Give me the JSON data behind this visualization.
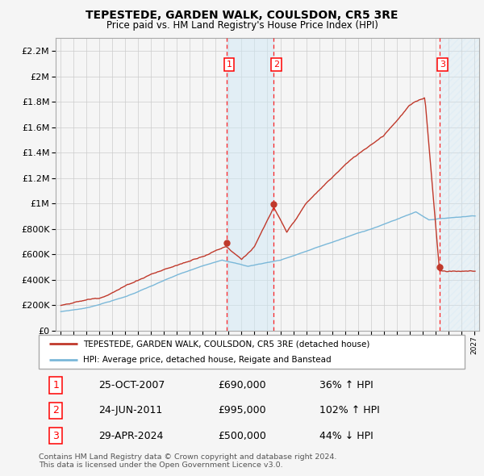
{
  "title": "TEPESTEDE, GARDEN WALK, COULSDON, CR5 3RE",
  "subtitle": "Price paid vs. HM Land Registry's House Price Index (HPI)",
  "legend_line1": "TEPESTEDE, GARDEN WALK, COULSDON, CR5 3RE (detached house)",
  "legend_line2": "HPI: Average price, detached house, Reigate and Banstead",
  "footer_line1": "Contains HM Land Registry data © Crown copyright and database right 2024.",
  "footer_line2": "This data is licensed under the Open Government Licence v3.0.",
  "transactions": [
    {
      "num": 1,
      "date": "25-OCT-2007",
      "price": 690000,
      "hpi_pct": "36% ↑ HPI",
      "x": 2007.82
    },
    {
      "num": 2,
      "date": "24-JUN-2011",
      "price": 995000,
      "hpi_pct": "102% ↑ HPI",
      "x": 2011.48
    },
    {
      "num": 3,
      "date": "29-APR-2024",
      "price": 500000,
      "hpi_pct": "44% ↓ HPI",
      "x": 2024.33
    }
  ],
  "ylim": [
    0,
    2300000
  ],
  "yticks": [
    0,
    200000,
    400000,
    600000,
    800000,
    1000000,
    1200000,
    1400000,
    1600000,
    1800000,
    2000000,
    2200000
  ],
  "xlim_start": 1994.6,
  "xlim_end": 2027.4,
  "hpi_color": "#7ab8d9",
  "price_color": "#c0392b",
  "background_color": "#f5f5f5",
  "plot_bg_color": "#f5f5f5",
  "grid_color": "#cccccc",
  "shade_color": "#d0e8f5",
  "hatch_color": "#c8dce8"
}
